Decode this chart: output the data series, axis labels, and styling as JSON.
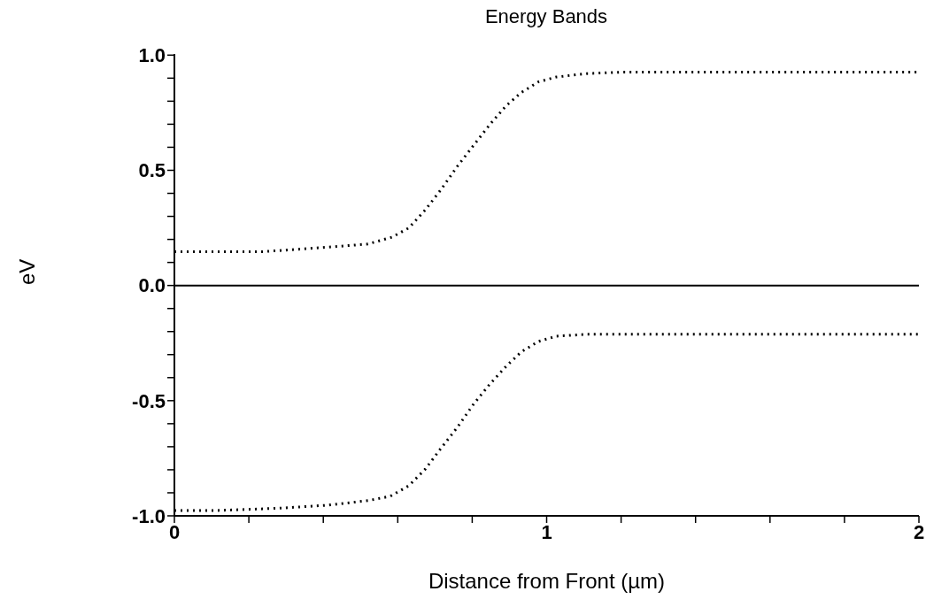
{
  "chart_data": {
    "type": "line",
    "title": "Energy Bands",
    "xlabel": "Distance from Front (µm)",
    "ylabel": "eV",
    "xlim": [
      0,
      2
    ],
    "ylim": [
      -1.0,
      1.005
    ],
    "xticks": [
      0,
      {
        "value": 0.2,
        "label": null
      },
      {
        "value": 0.4,
        "label": null
      },
      {
        "value": 0.6,
        "label": null
      },
      {
        "value": 0.8,
        "label": null
      },
      1,
      {
        "value": 1.2,
        "label": null
      },
      {
        "value": 1.4,
        "label": null
      },
      {
        "value": 1.6,
        "label": null
      },
      {
        "value": 1.8,
        "label": null
      },
      2
    ],
    "yticks": [
      {
        "value": -1,
        "label": "-1.0"
      },
      {
        "value": -0.9,
        "label": null
      },
      {
        "value": -0.8,
        "label": null
      },
      {
        "value": -0.7,
        "label": null
      },
      {
        "value": -0.6,
        "label": null
      },
      -0.5,
      {
        "value": -0.4,
        "label": null
      },
      {
        "value": -0.3,
        "label": null
      },
      {
        "value": -0.2,
        "label": null
      },
      {
        "value": -0.1,
        "label": null
      },
      {
        "value": 0,
        "label": "0.0"
      },
      {
        "value": 0.1,
        "label": null
      },
      {
        "value": 0.2,
        "label": null
      },
      {
        "value": 0.3,
        "label": null
      },
      {
        "value": 0.4,
        "label": null
      },
      0.5,
      {
        "value": 0.6,
        "label": null
      },
      {
        "value": 0.7,
        "label": null
      },
      {
        "value": 0.8,
        "label": null
      },
      {
        "value": 0.9,
        "label": null
      },
      {
        "value": 1,
        "label": "1.0"
      }
    ],
    "grid": false,
    "legend": false,
    "marker": "none",
    "series": [
      {
        "color": "#000000",
        "line_style": "dotted",
        "x": [
          0,
          0.24,
          0.41,
          0.52,
          0.585,
          0.63,
          0.674,
          0.716,
          0.76,
          0.805,
          0.848,
          0.891,
          0.932,
          0.978,
          1.026,
          1.109,
          1.198,
          2
        ],
        "values": [
          0.147,
          0.147,
          0.166,
          0.18,
          0.21,
          0.25,
          0.328,
          0.416,
          0.517,
          0.611,
          0.7,
          0.78,
          0.838,
          0.884,
          0.905,
          0.92,
          0.926,
          0.926
        ]
      },
      {
        "color": "#000000",
        "line_style": "solid",
        "x": [
          0,
          2
        ],
        "values": [
          0,
          0
        ]
      },
      {
        "color": "#000000",
        "line_style": "dotted",
        "x": [
          0,
          0.11,
          0.28,
          0.41,
          0.52,
          0.58,
          0.63,
          0.674,
          0.716,
          0.76,
          0.805,
          0.848,
          0.891,
          0.932,
          0.978,
          1.026,
          1.109,
          2
        ],
        "values": [
          -0.977,
          -0.977,
          -0.967,
          -0.954,
          -0.934,
          -0.915,
          -0.869,
          -0.797,
          -0.707,
          -0.616,
          -0.512,
          -0.427,
          -0.351,
          -0.288,
          -0.243,
          -0.22,
          -0.212,
          -0.212
        ]
      }
    ]
  }
}
